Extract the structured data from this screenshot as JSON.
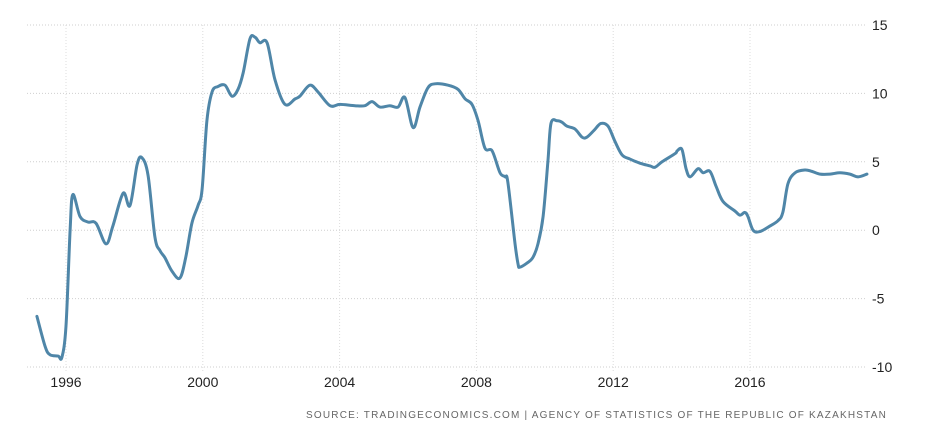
{
  "chart_data": {
    "type": "line",
    "title": "",
    "xlabel": "",
    "ylabel": "",
    "xlim": [
      1995.0,
      2019.6
    ],
    "ylim": [
      -10,
      15
    ],
    "grid": true,
    "y_axis_position": "right",
    "yticks": [
      15,
      10,
      5,
      0,
      -5,
      -10
    ],
    "xticks": [
      1996,
      2000,
      2004,
      2008,
      2012,
      2016
    ],
    "line_color": "#4f86a8",
    "series": [
      {
        "name": "Kazakhstan",
        "x": [
          1995.15,
          1995.39,
          1995.53,
          1995.77,
          1995.88,
          1996.0,
          1996.12,
          1996.2,
          1996.41,
          1996.64,
          1996.88,
          1997.17,
          1997.37,
          1997.67,
          1997.87,
          1998.08,
          1998.22,
          1998.4,
          1998.6,
          1998.75,
          1998.89,
          1999.1,
          1999.33,
          1999.5,
          1999.68,
          1999.86,
          1999.98,
          2000.12,
          2000.27,
          2000.44,
          2000.65,
          2000.85,
          2001.03,
          2001.18,
          2001.38,
          2001.53,
          2001.67,
          2001.88,
          2002.11,
          2002.4,
          2002.7,
          2002.84,
          2003.13,
          2003.37,
          2003.72,
          2004.01,
          2004.45,
          2004.74,
          2004.95,
          2005.18,
          2005.47,
          2005.71,
          2005.91,
          2006.15,
          2006.35,
          2006.58,
          2006.79,
          2007.17,
          2007.46,
          2007.67,
          2007.87,
          2008.05,
          2008.25,
          2008.46,
          2008.69,
          2008.84,
          2008.92,
          2009.13,
          2009.22,
          2009.27,
          2009.48,
          2009.65,
          2009.8,
          2009.95,
          2010.09,
          2010.18,
          2010.36,
          2010.5,
          2010.65,
          2010.88,
          2011.09,
          2011.23,
          2011.44,
          2011.64,
          2011.85,
          2012.05,
          2012.26,
          2012.49,
          2012.78,
          2013.08,
          2013.22,
          2013.43,
          2013.81,
          2013.87,
          2014.01,
          2014.13,
          2014.25,
          2014.48,
          2014.63,
          2014.83,
          2015.01,
          2015.21,
          2015.56,
          2015.71,
          2015.85,
          2015.94,
          2016.09,
          2016.29,
          2016.58,
          2016.82,
          2016.96,
          2017.11,
          2017.32,
          2017.61,
          2017.81,
          2018.05,
          2018.34,
          2018.63,
          2018.92,
          2019.16,
          2019.42
        ],
        "y": [
          -6.3,
          -8.5,
          -9.1,
          -9.2,
          -9.3,
          -7,
          0,
          2.6,
          1.0,
          0.6,
          0.5,
          -1,
          0.3,
          2.7,
          1.8,
          4.8,
          5.3,
          4,
          -0.5,
          -1.5,
          -2,
          -3,
          -3.5,
          -2,
          0.5,
          1.8,
          3,
          8,
          10.1,
          10.5,
          10.6,
          9.8,
          10.3,
          11.5,
          14,
          14.1,
          13.7,
          13.7,
          11,
          9.2,
          9.6,
          9.8,
          10.6,
          10.1,
          9.1,
          9.2,
          9.1,
          9.1,
          9.4,
          9.0,
          9.1,
          9.0,
          9.7,
          7.5,
          9.0,
          10.4,
          10.7,
          10.6,
          10.3,
          9.6,
          9.2,
          8.0,
          6.0,
          5.8,
          4.2,
          3.9,
          3.5,
          -1,
          -2.5,
          -2.7,
          -2.4,
          -2.0,
          -1.0,
          1.0,
          5.0,
          7.8,
          8.0,
          7.9,
          7.6,
          7.4,
          6.8,
          6.8,
          7.3,
          7.8,
          7.6,
          6.5,
          5.5,
          5.2,
          4.9,
          4.7,
          4.6,
          5.0,
          5.6,
          5.8,
          5.9,
          4.5,
          3.9,
          4.5,
          4.2,
          4.3,
          3.2,
          2.1,
          1.4,
          1.1,
          1.3,
          1.0,
          0.0,
          -0.1,
          0.3,
          0.7,
          1.3,
          3.4,
          4.2,
          4.4,
          4.3,
          4.1,
          4.1,
          4.2,
          4.1,
          3.9,
          4.1
        ]
      }
    ]
  },
  "source_text": "SOURCE: TRADINGECONOMICS.COM | AGENCY OF STATISTICS OF THE REPUBLIC OF KAZAKHSTAN"
}
